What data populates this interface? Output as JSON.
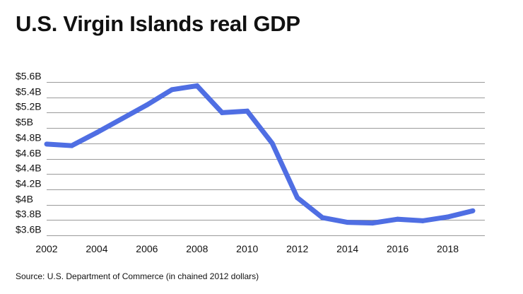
{
  "chart_data": {
    "type": "line",
    "title": "U.S. Virgin Islands real GDP",
    "source": "Source: U.S. Department of Commerce (in chained 2012 dollars)",
    "xlabel": "",
    "ylabel": "",
    "xlim": [
      2002,
      2019
    ],
    "ylim": [
      3.6,
      5.6
    ],
    "grid": true,
    "line_color": "#4f6ee3",
    "yticks": [
      {
        "value": 3.6,
        "label": "$3.6B"
      },
      {
        "value": 3.8,
        "label": "$3.8B"
      },
      {
        "value": 4.0,
        "label": "$4B"
      },
      {
        "value": 4.2,
        "label": "$4.2B"
      },
      {
        "value": 4.4,
        "label": "$4.4B"
      },
      {
        "value": 4.6,
        "label": "$4.6B"
      },
      {
        "value": 4.8,
        "label": "$4.8B"
      },
      {
        "value": 5.0,
        "label": "$5B"
      },
      {
        "value": 5.2,
        "label": "$5.2B"
      },
      {
        "value": 5.4,
        "label": "$5.4B"
      },
      {
        "value": 5.6,
        "label": "$5.6B"
      }
    ],
    "xticks": [
      {
        "value": 2002,
        "label": "2002"
      },
      {
        "value": 2004,
        "label": "2004"
      },
      {
        "value": 2006,
        "label": "2006"
      },
      {
        "value": 2008,
        "label": "2008"
      },
      {
        "value": 2010,
        "label": "2010"
      },
      {
        "value": 2012,
        "label": "2012"
      },
      {
        "value": 2014,
        "label": "2014"
      },
      {
        "value": 2016,
        "label": "2016"
      },
      {
        "value": 2018,
        "label": "2018"
      }
    ],
    "series": [
      {
        "name": "Real GDP",
        "x": [
          2002,
          2003,
          2004,
          2005,
          2006,
          2007,
          2008,
          2009,
          2010,
          2011,
          2012,
          2013,
          2014,
          2015,
          2016,
          2017,
          2018,
          2019
        ],
        "values": [
          4.79,
          4.77,
          4.94,
          5.12,
          5.3,
          5.5,
          5.55,
          5.2,
          5.22,
          4.8,
          4.09,
          3.83,
          3.77,
          3.76,
          3.81,
          3.79,
          3.84,
          3.92
        ]
      }
    ]
  }
}
